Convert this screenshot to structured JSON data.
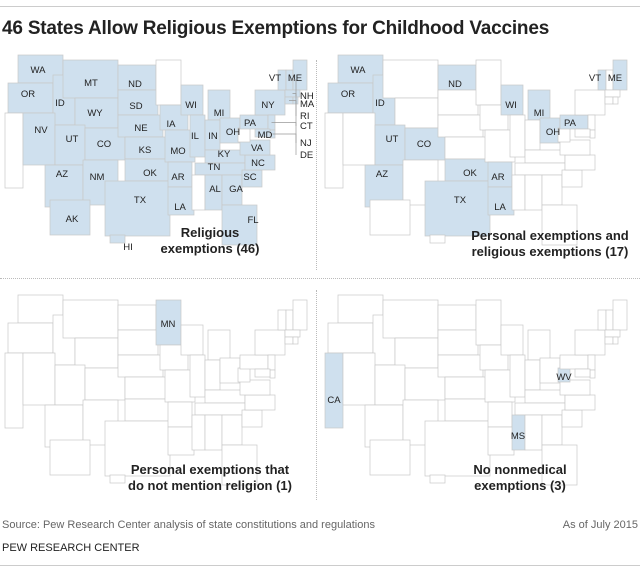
{
  "title": "46 States Allow Religious Exemptions for Childhood Vaccines",
  "colors": {
    "highlight": "#cfe0ee",
    "base": "#ffffff",
    "border": "#c8c8c8"
  },
  "maps": [
    {
      "caption_line1": "Religious",
      "caption_line2": "exemptions (46)",
      "states": [
        "WA",
        "OR",
        "ID",
        "MT",
        "WY",
        "NV",
        "UT",
        "CO",
        "AZ",
        "NM",
        "ND",
        "SD",
        "NE",
        "KS",
        "OK",
        "TX",
        "IA",
        "MO",
        "AR",
        "LA",
        "WI",
        "IL",
        "MI",
        "IN",
        "OH",
        "KY",
        "TN",
        "AL",
        "GA",
        "FL",
        "SC",
        "NC",
        "VA",
        "PA",
        "NY",
        "VT",
        "NH",
        "ME",
        "MA",
        "CT",
        "RI",
        "NJ",
        "DE",
        "MD",
        "AK",
        "HI"
      ],
      "labels": [
        "WA",
        "OR",
        "ID",
        "MT",
        "WY",
        "NV",
        "UT",
        "CO",
        "AZ",
        "NM",
        "ND",
        "SD",
        "NE",
        "KS",
        "OK",
        "TX",
        "IA",
        "MO",
        "AR",
        "LA",
        "WI",
        "IL",
        "MI",
        "IN",
        "OH",
        "KY",
        "TN",
        "AL",
        "GA",
        "FL",
        "SC",
        "NC",
        "VA",
        "PA",
        "NY",
        "VT",
        "ME",
        "MD",
        "AK",
        "HI"
      ],
      "callouts": [
        "NH",
        "MA",
        "RI",
        "CT",
        "NJ",
        "DE"
      ]
    },
    {
      "caption_line1": "Personal exemptions and",
      "caption_line2": "religious exemptions (17)",
      "states": [
        "WA",
        "OR",
        "ID",
        "UT",
        "AZ",
        "CO",
        "TX",
        "OK",
        "ND",
        "WI",
        "MI",
        "OH",
        "PA",
        "VT",
        "ME",
        "AR",
        "LA"
      ],
      "labels": [
        "WA",
        "OR",
        "ID",
        "UT",
        "AZ",
        "CO",
        "TX",
        "OK",
        "ND",
        "WI",
        "MI",
        "OH",
        "PA",
        "VT",
        "ME",
        "AR",
        "LA"
      ]
    },
    {
      "caption_line1": "Personal exemptions that",
      "caption_line2": "do not mention religion (1)",
      "states": [
        "MN"
      ],
      "labels": [
        "MN"
      ]
    },
    {
      "caption_line1": "No nonmedical",
      "caption_line2": "exemptions (3)",
      "states": [
        "CA",
        "WV",
        "MS"
      ],
      "labels": [
        "CA",
        "WV",
        "MS"
      ]
    }
  ],
  "footer": {
    "source": "Source: Pew Research Center analysis of state constitutions and regulations",
    "as_of": "As of July 2015",
    "brand": "PEW RESEARCH CENTER"
  }
}
